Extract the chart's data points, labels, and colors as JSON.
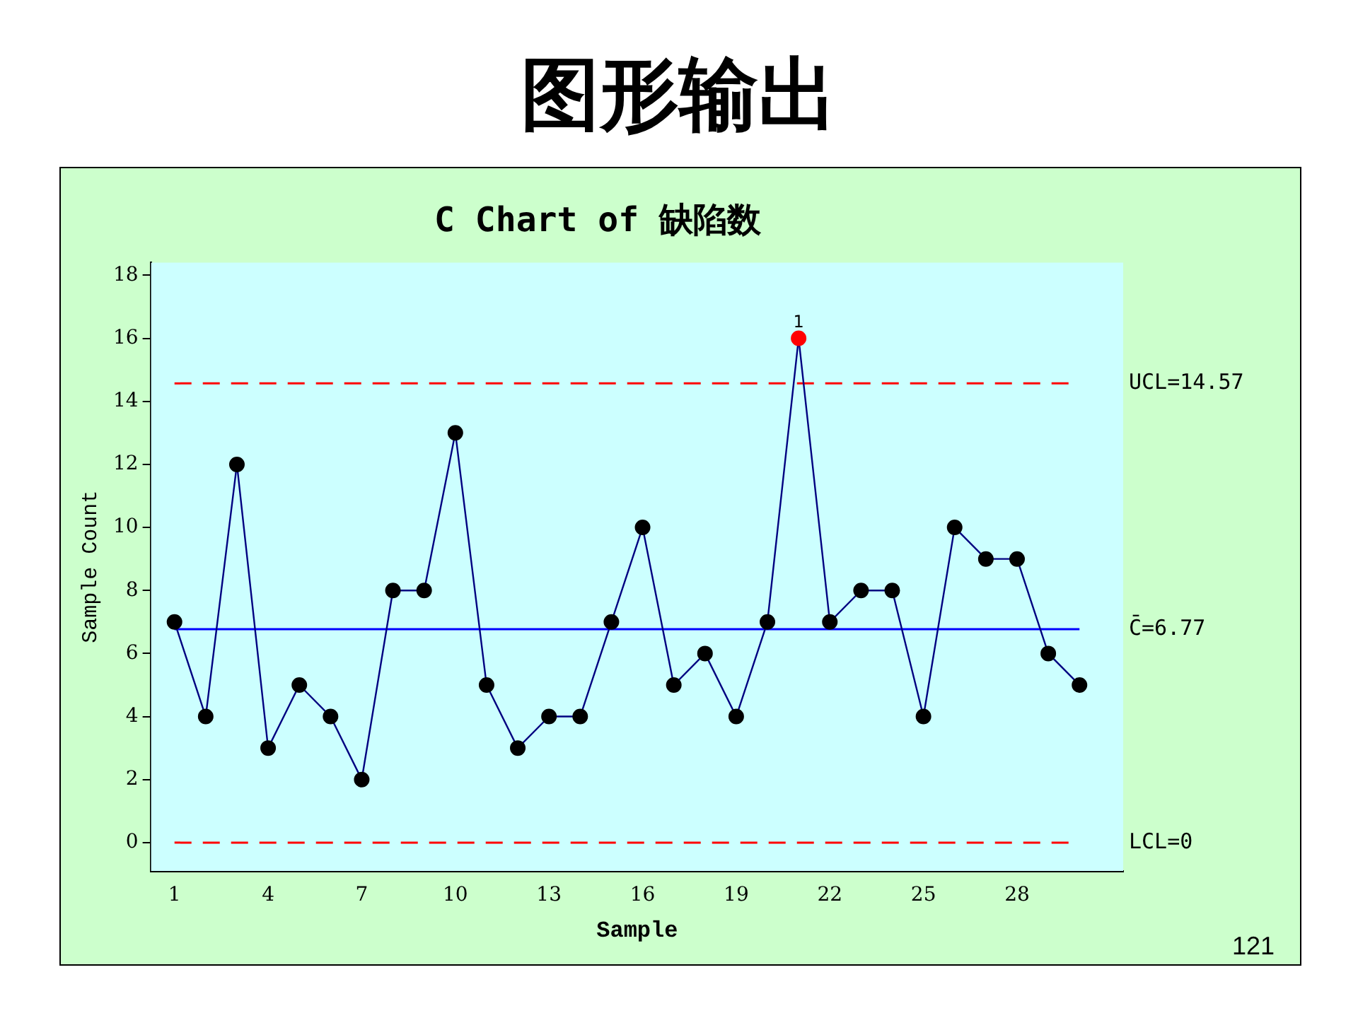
{
  "chart_data": {
    "type": "line",
    "title": "图形输出",
    "subtitle": "C Chart of 缺陷数",
    "xlabel": "Sample",
    "ylabel": "Sample Count",
    "x": [
      1,
      2,
      3,
      4,
      5,
      6,
      7,
      8,
      9,
      10,
      11,
      12,
      13,
      14,
      15,
      16,
      17,
      18,
      19,
      20,
      21,
      22,
      23,
      24,
      25,
      26,
      27,
      28,
      29,
      30
    ],
    "series": [
      {
        "color": "#000080",
        "marker": "circle",
        "values": [
          7,
          4,
          12,
          3,
          5,
          4,
          2,
          8,
          8,
          13,
          5,
          3,
          4,
          4,
          7,
          10,
          5,
          6,
          4,
          7,
          16,
          7,
          8,
          8,
          4,
          10,
          9,
          9,
          6,
          5
        ],
        "colors": [
          "#000000",
          "#000000",
          "#000000",
          "#000000",
          "#000000",
          "#000000",
          "#000000",
          "#000000",
          "#000000",
          "#000000",
          "#000000",
          "#000000",
          "#000000",
          "#000000",
          "#000000",
          "#000000",
          "#000000",
          "#000000",
          "#000000",
          "#000000",
          "#ff0000",
          "#000000",
          "#000000",
          "#000000",
          "#000000",
          "#000000",
          "#000000",
          "#000000",
          "#000000",
          "#000000"
        ]
      }
    ],
    "xlim": [
      0.25,
      31.4
    ],
    "xticks": [
      1,
      4,
      7,
      10,
      13,
      16,
      19,
      22,
      25,
      28
    ],
    "ylim": [
      -0.9,
      18.4
    ],
    "yticks": [
      0,
      2,
      4,
      6,
      8,
      10,
      12,
      14,
      16,
      18
    ],
    "ref_lines": [
      {
        "axis": "y",
        "value": 14.57,
        "label": "UCL=14.57",
        "color": "#ff0000",
        "line_style": "dashed"
      },
      {
        "axis": "y",
        "value": 6.77,
        "label": "C̄=6.77",
        "color": "#0000ff",
        "line_style": "solid"
      },
      {
        "axis": "y",
        "value": 0,
        "label": "LCL=0",
        "color": "#ff0000",
        "line_style": "dashed"
      }
    ],
    "annotations": [
      {
        "text": "1",
        "x": 21,
        "y": 16
      },
      "121"
    ],
    "grid": false,
    "legend": false
  }
}
